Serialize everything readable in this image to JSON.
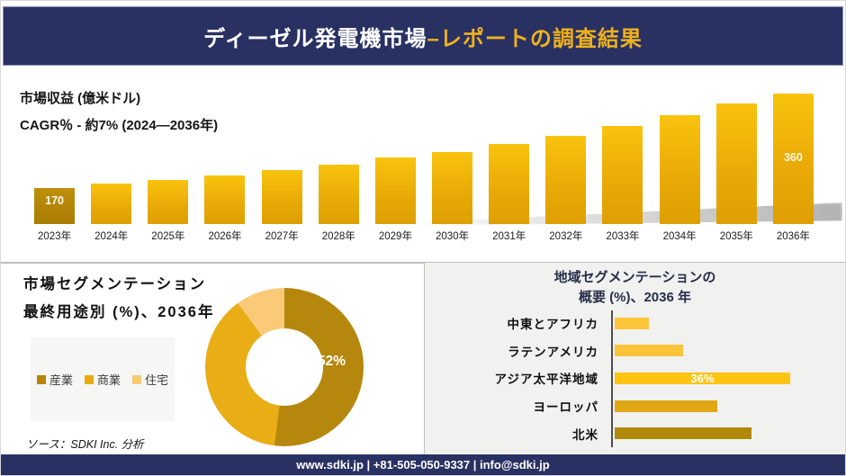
{
  "header": {
    "title_white": "ディーゼル発電機市場 ",
    "title_gold": "–レポートの調査結果"
  },
  "revenue_chart": {
    "title": "市場収益 (億米ドル)",
    "subtitle": "CAGR％ - 約7% (2024―2036年)",
    "first_bar_label": "170",
    "last_bar_label": "360",
    "years": [
      "2023年",
      "2024年",
      "2025年",
      "2026年",
      "2027年",
      "2028年",
      "2029年",
      "2030年",
      "2031年",
      "2032年",
      "2033年",
      "2034年",
      "2035年",
      "2036年"
    ],
    "values": [
      170,
      179,
      187,
      196,
      206,
      217,
      232,
      243,
      259,
      275,
      295,
      317,
      340,
      360
    ]
  },
  "segmentation": {
    "title_line1": "市場セグメンテーション",
    "title_line2": "最終用途別 (%)、2036年",
    "center_label": "52%",
    "legend": [
      {
        "label": "産業",
        "color": "#b8860b"
      },
      {
        "label": "商業",
        "color": "#e9ab11"
      },
      {
        "label": "住宅",
        "color": "#f8ca74"
      }
    ],
    "slices": [
      {
        "label": "産業",
        "value": 52,
        "color": "#b5870d"
      },
      {
        "label": "商業",
        "value": 38,
        "color": "#e9ad16"
      },
      {
        "label": "住宅",
        "value": 10,
        "color": "#fbca79"
      }
    ],
    "source": "ソース：SDKI Inc. 分析"
  },
  "region_chart": {
    "title_line1": "地域セグメンテーションの",
    "title_line2": "概要 (%)、2036 年",
    "bars": [
      {
        "label": "中東とアフリカ",
        "value": 7,
        "color": "#fcc53a",
        "display": ""
      },
      {
        "label": "ラテンアメリカ",
        "value": 14,
        "color": "#fcc43a",
        "display": ""
      },
      {
        "label": "アジア太平洋地域",
        "value": 36,
        "color": "#fdc414",
        "display": "36%"
      },
      {
        "label": "ヨーロッパ",
        "value": 21,
        "color": "#dfa713",
        "display": ""
      },
      {
        "label": "北米",
        "value": 28,
        "color": "#b0880a",
        "display": ""
      }
    ]
  },
  "footer": {
    "text": "www.sdki.jp | +81-505-050-9337 | info@sdki.jp"
  },
  "chart_data": [
    {
      "type": "bar",
      "title": "市場収益 (億米ドル)",
      "subtitle": "CAGR％ - 約7% (2024―2036年)",
      "categories": [
        "2023年",
        "2024年",
        "2025年",
        "2026年",
        "2027年",
        "2028年",
        "2029年",
        "2030年",
        "2031年",
        "2032年",
        "2033年",
        "2034年",
        "2035年",
        "2036年"
      ],
      "values": [
        170,
        179,
        187,
        196,
        206,
        217,
        232,
        243,
        259,
        275,
        295,
        317,
        340,
        360
      ],
      "labeled_values": {
        "2023年": 170,
        "2036年": 360
      },
      "ylabel": "億米ドル",
      "grid": false,
      "legend_position": "none"
    },
    {
      "type": "pie",
      "subtype": "donut",
      "title": "市場セグメンテーション 最終用途別 (%)、2036年",
      "categories": [
        "産業",
        "商業",
        "住宅"
      ],
      "values": [
        52,
        38,
        10
      ],
      "labeled_values": {
        "産業": 52
      },
      "legend_position": "left"
    },
    {
      "type": "bar",
      "orientation": "horizontal",
      "title": "地域セグメンテーションの概要 (%)、2036 年",
      "categories": [
        "中東とアフリカ",
        "ラテンアメリカ",
        "アジア太平洋地域",
        "ヨーロッパ",
        "北米"
      ],
      "values": [
        7,
        14,
        36,
        21,
        28
      ],
      "labeled_values": {
        "アジア太平洋地域": 36
      },
      "grid": false,
      "legend_position": "none"
    }
  ]
}
